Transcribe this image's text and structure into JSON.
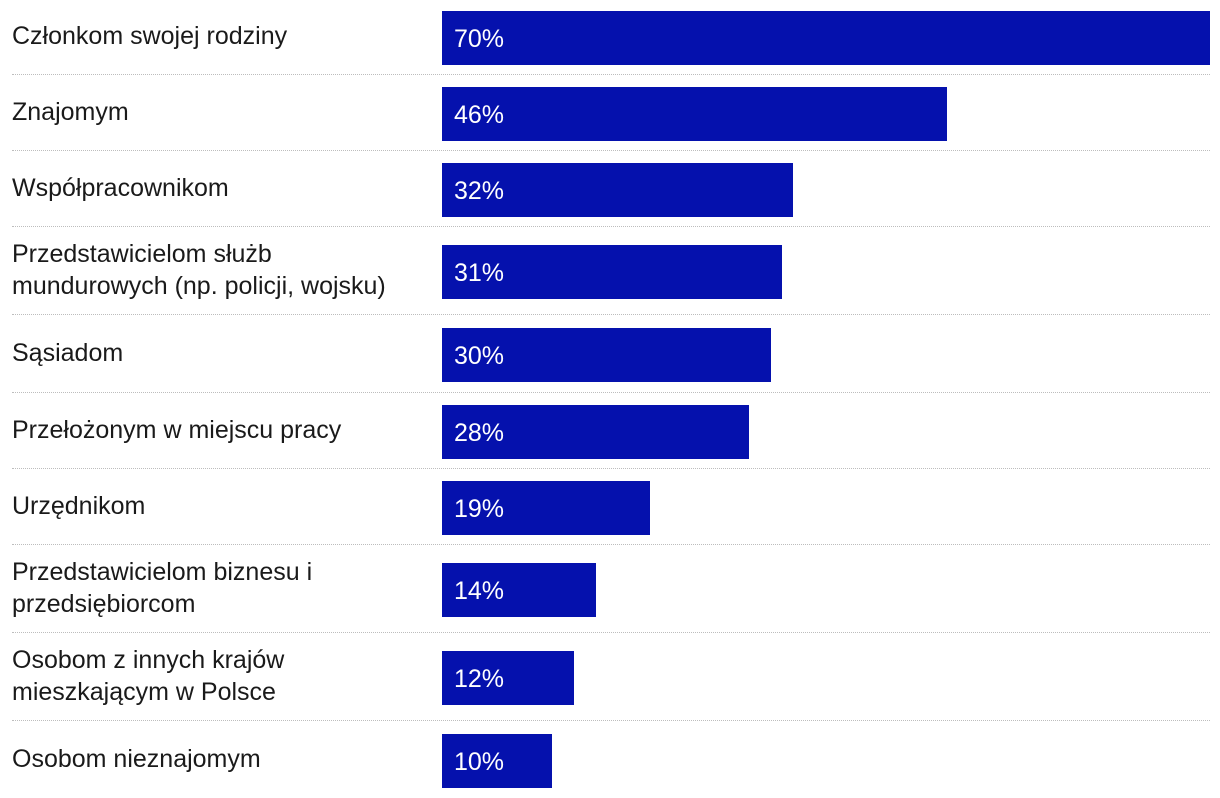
{
  "chart_data": {
    "type": "bar",
    "orientation": "horizontal",
    "title": "",
    "xlabel": "",
    "ylabel": "",
    "xlim": [
      0,
      70
    ],
    "bar_color": "#0511ad",
    "categories": [
      "Członkom swojej rodziny",
      "Znajomym",
      "Współpracownikom",
      "Przedstawicielom służb mundurowych (np. policji, wojsku)",
      "Sąsiadom",
      "Przełożonym w miejscu pracy",
      "Urzędnikom",
      "Przedstawicielom biznesu i przedsiębiorcom",
      "Osobom z innych krajów mieszkającym w Polsce",
      "Osobom nieznajomym"
    ],
    "values": [
      70,
      46,
      32,
      31,
      30,
      28,
      19,
      14,
      12,
      10
    ],
    "value_labels": [
      "70%",
      "46%",
      "32%",
      "31%",
      "30%",
      "28%",
      "19%",
      "14%",
      "12%",
      "10%"
    ]
  }
}
